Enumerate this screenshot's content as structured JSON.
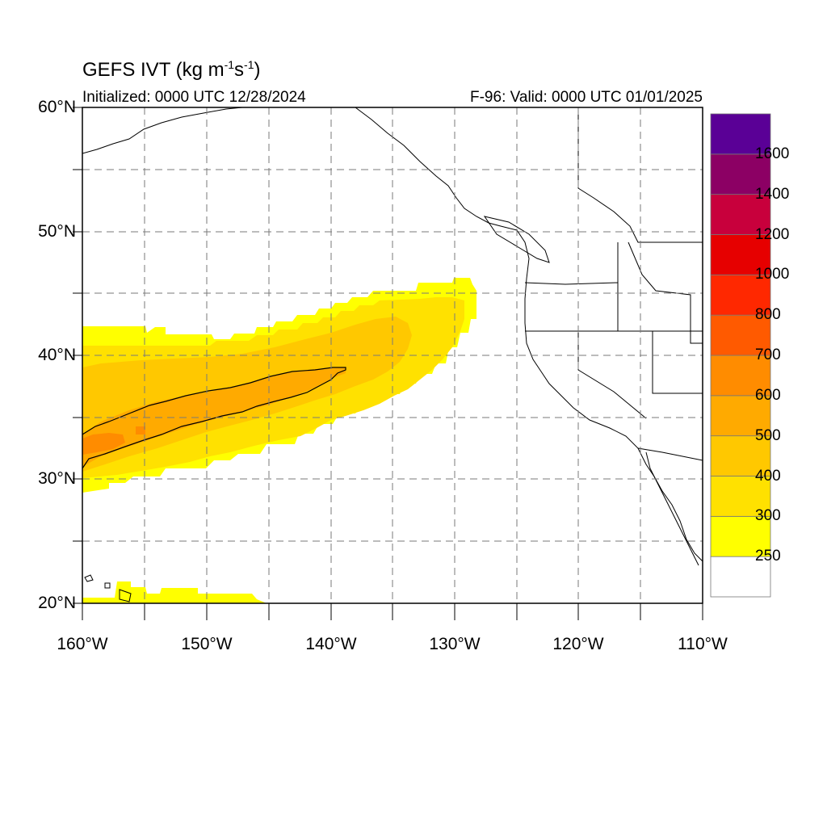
{
  "header": {
    "title_main": "GEFS IVT (kg m",
    "title_exp1": "-1",
    "title_mid": "s",
    "title_exp2": "-1",
    "title_end": ")",
    "initialized": "Initialized: 0000 UTC 12/28/2024",
    "valid": "F-96: Valid: 0000 UTC 01/01/2025"
  },
  "map": {
    "projection": "cylindrical equidistant",
    "lon_range": [
      -160,
      -110
    ],
    "lat_range": [
      20,
      60
    ],
    "grid": true,
    "gridline_style": "dashed",
    "lat_labels": [
      "60°N",
      "50°N",
      "40°N",
      "30°N",
      "20°N"
    ],
    "lon_labels": [
      "160°W",
      "150°W",
      "140°W",
      "130°W",
      "120°W",
      "110°W"
    ],
    "contour_line_level": 500
  },
  "colorbar": {
    "placement": "right",
    "levels": [
      "250",
      "300",
      "400",
      "500",
      "600",
      "700",
      "800",
      "1000",
      "1200",
      "1400",
      "1600"
    ],
    "colors": [
      "#ffffff",
      "#ffff00",
      "#ffe100",
      "#ffc800",
      "#ffaa00",
      "#ff8c00",
      "#ff5a00",
      "#ff2800",
      "#e60000",
      "#c8003c",
      "#8c0064",
      "#5a0096"
    ]
  },
  "ivt_field": [
    {
      "level": 250,
      "color": "#ffff00"
    },
    {
      "level": 300,
      "color": "#ffe100"
    },
    {
      "level": 400,
      "color": "#ffc800"
    },
    {
      "level": 500,
      "color": "#ffaa00"
    },
    {
      "level": 600,
      "color": "#ff8c00"
    }
  ]
}
